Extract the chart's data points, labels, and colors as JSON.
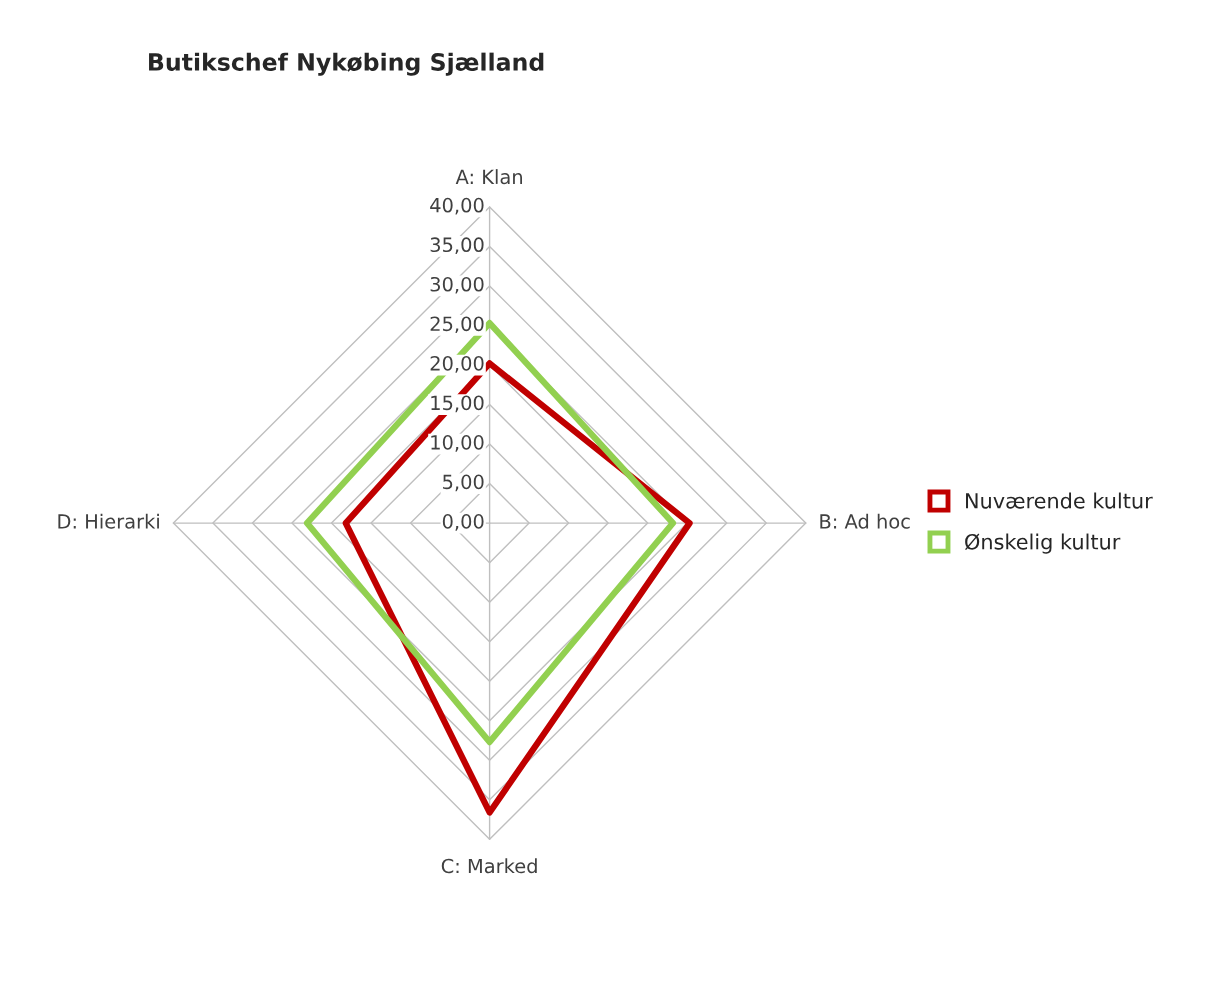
{
  "chart_data": {
    "type": "radar",
    "title": "Butikschef Nykøbing Sjælland",
    "categories": [
      "A: Klan",
      "B: Ad hoc",
      "C: Marked",
      "D: Hierarki"
    ],
    "series": [
      {
        "name": "Nuværende kultur",
        "color": "#c00000",
        "values": [
          20.2,
          25.3,
          36.6,
          18.2
        ]
      },
      {
        "name": "Ønskelig kultur",
        "color": "#92d050",
        "values": [
          25.3,
          23.2,
          27.7,
          23.1
        ]
      }
    ],
    "ylim": [
      0,
      40
    ],
    "yticks": [
      {
        "value": 0,
        "label": "0,00"
      },
      {
        "value": 5,
        "label": "5,00"
      },
      {
        "value": 10,
        "label": "10,00"
      },
      {
        "value": 15,
        "label": "15,00"
      },
      {
        "value": 20,
        "label": "20,00"
      },
      {
        "value": 25,
        "label": "25,00"
      },
      {
        "value": 30,
        "label": "30,00"
      },
      {
        "value": 35,
        "label": "35,00"
      },
      {
        "value": 40,
        "label": "40,00"
      }
    ],
    "grid": true,
    "legend": "right"
  }
}
